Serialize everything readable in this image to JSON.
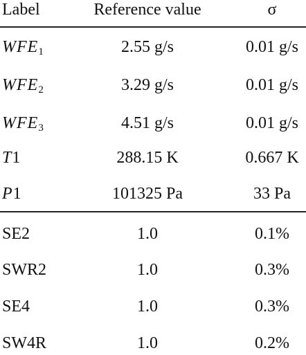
{
  "table": {
    "header": [
      "Label",
      "Reference value",
      "σ"
    ],
    "rows": [
      [
        {
          "italic": "WFE",
          "sub": "1"
        },
        "2.55 g/s",
        "0.01 g/s"
      ],
      [
        {
          "italic": "WFE",
          "sub": "2"
        },
        "3.29 g/s",
        "0.01 g/s"
      ],
      [
        {
          "italic": "WFE",
          "sub": "3"
        },
        "4.51 g/s",
        "0.01 g/s"
      ],
      [
        {
          "italic": "T",
          "plain": "1"
        },
        "288.15 K",
        "0.667 K"
      ],
      [
        {
          "italic": "P",
          "plain": "1"
        },
        "101325 Pa",
        "33 Pa"
      ],
      [
        {
          "plain": "SE2"
        },
        "1.0",
        "0.1%"
      ],
      [
        {
          "plain": "SWR2"
        },
        "1.0",
        "0.3%"
      ],
      [
        {
          "plain": "SE4"
        },
        "1.0",
        "0.3%"
      ],
      [
        {
          "plain": "SW4R"
        },
        "1.0",
        "0.2%"
      ]
    ]
  }
}
